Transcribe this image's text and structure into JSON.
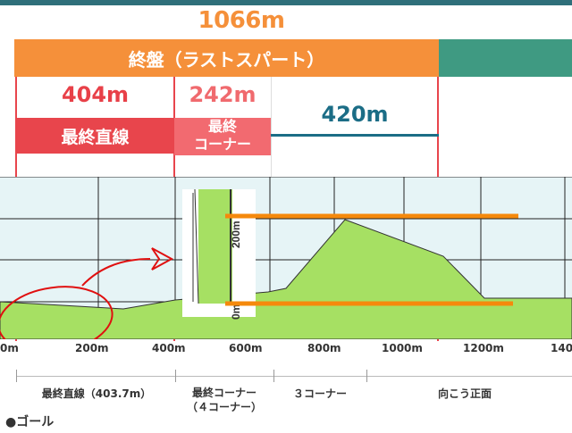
{
  "header": {
    "total_distance": "1066m",
    "phase_label": "終盤（ラストスパート）"
  },
  "segments": [
    {
      "distance": "404m",
      "label": "最終直線"
    },
    {
      "distance": "242m",
      "label_line1": "最終",
      "label_line2": "コーナー"
    },
    {
      "distance": "420m"
    }
  ],
  "axis": {
    "ticks": [
      "0m",
      "200m",
      "400m",
      "600m",
      "800m",
      "1000m",
      "1200m",
      "140"
    ]
  },
  "scale_inset": {
    "top_label": "200m",
    "bottom_label": "0m"
  },
  "sections": [
    {
      "label": "最終直線（403.7m）"
    },
    {
      "label_line1": "最終コーナー",
      "label_line2": "（４コーナー）"
    },
    {
      "label": "３コーナー"
    },
    {
      "label": "向こう正面"
    }
  ],
  "legend": {
    "goal_label": "●ゴール"
  },
  "colors": {
    "orange": "#f5903a",
    "teal": "#3f9a82",
    "red": "#e8454c",
    "pink": "#f26a70",
    "blue": "#1b6d86",
    "terrain": "#a6e063",
    "highlight": "#f5890c"
  }
}
